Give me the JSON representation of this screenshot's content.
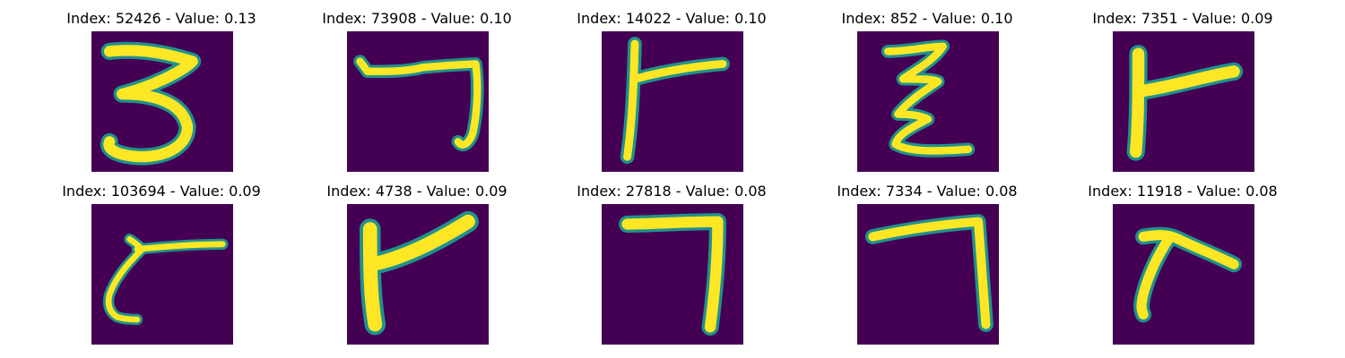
{
  "colors": {
    "background": "#440154",
    "glyph": "#fde725",
    "glyph_edge": "#21918c"
  },
  "panels": [
    {
      "title": "Index: 52426 - Value: 0.13",
      "index": 52426,
      "value": 0.13
    },
    {
      "title": "Index: 73908 - Value: 0.10",
      "index": 73908,
      "value": 0.1
    },
    {
      "title": "Index: 14022 - Value: 0.10",
      "index": 14022,
      "value": 0.1
    },
    {
      "title": "Index: 852 - Value: 0.10",
      "index": 852,
      "value": 0.1
    },
    {
      "title": "Index: 7351 - Value: 0.09",
      "index": 7351,
      "value": 0.09
    },
    {
      "title": "Index: 103694 - Value: 0.09",
      "index": 103694,
      "value": 0.09
    },
    {
      "title": "Index: 4738 - Value: 0.09",
      "index": 4738,
      "value": 0.09
    },
    {
      "title": "Index: 27818 - Value: 0.08",
      "index": 27818,
      "value": 0.08
    },
    {
      "title": "Index: 7334 - Value: 0.08",
      "index": 7334,
      "value": 0.08
    },
    {
      "title": "Index: 11918 - Value: 0.08",
      "index": 11918,
      "value": 0.08
    }
  ]
}
